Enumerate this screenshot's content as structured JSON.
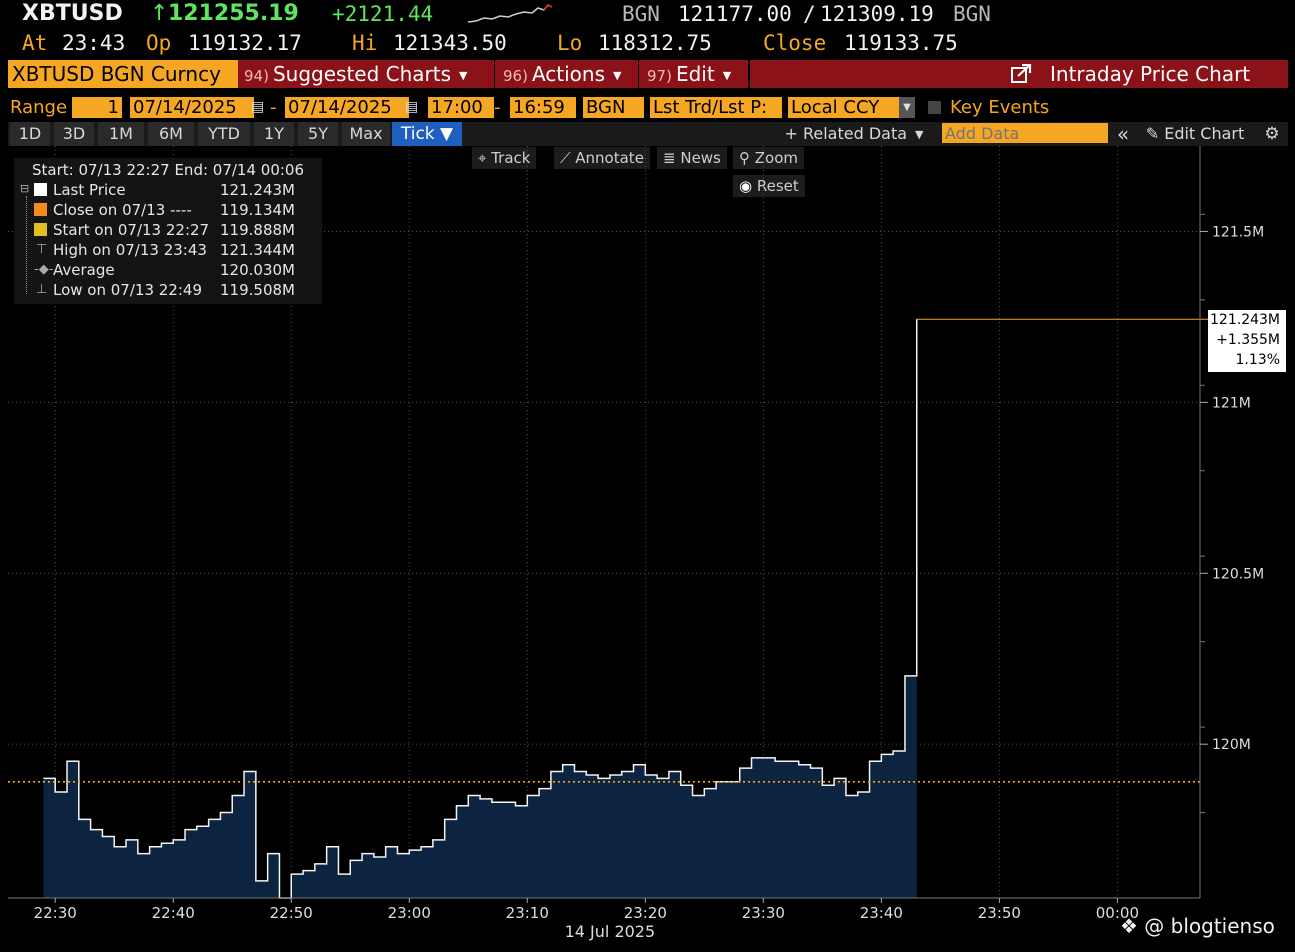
{
  "quote": {
    "ticker": "XBTUSD",
    "arrow": "↑",
    "last": "121255.19",
    "change": "+2121.44",
    "bid_source": "BGN",
    "bid": "121177.00",
    "separator": "/",
    "ask": "121309.19",
    "ask_source": "BGN"
  },
  "stats": {
    "at_label": "At",
    "at_value": "23:43",
    "op_label": "Op",
    "op_value": "119132.17",
    "hi_label": "Hi",
    "hi_value": "121343.50",
    "lo_label": "Lo",
    "lo_value": "118312.75",
    "close_label": "Close",
    "close_value": "119133.75"
  },
  "function_bar": {
    "security": "XBTUSD BGN Curncy",
    "menus": [
      {
        "num": "94)",
        "label": "Suggested Charts"
      },
      {
        "num": "96)",
        "label": "Actions"
      },
      {
        "num": "97)",
        "label": "Edit"
      }
    ],
    "title": "Intraday Price Chart",
    "title_icon": "external-link-icon"
  },
  "range_bar": {
    "label": "Range",
    "range_num": "1",
    "start_date": "07/14/2025",
    "dash": "-",
    "end_date": "07/14/2025",
    "start_time": "17:00",
    "end_time": "16:59",
    "source": "BGN",
    "field": "Lst Trd/Lst P:",
    "currency": "Local CCY",
    "key_events": "Key Events"
  },
  "period_tabs": [
    "1D",
    "3D",
    "1M",
    "6M",
    "YTD",
    "1Y",
    "5Y",
    "Max",
    "Tick ▼"
  ],
  "active_tab": 8,
  "toolbar": {
    "related_data": "+ Related Data",
    "add_data_placeholder": "Add Data",
    "collapse": "«",
    "edit_chart": "Edit Chart",
    "track": "Track",
    "annotate": "Annotate",
    "news": "News",
    "zoom": "Zoom",
    "reset": "Reset"
  },
  "legend": {
    "header": "Start: 07/13 22:27 End: 07/14 00:06",
    "rows": [
      {
        "name": "Last Price",
        "value": "121.243M",
        "color": "#ffffff"
      },
      {
        "name": "Close on 07/13 ----",
        "value": "119.134M",
        "color": "#f58a1f"
      },
      {
        "name": "Start on 07/13 22:27",
        "value": "119.888M",
        "color": "#e0c020"
      },
      {
        "name": "High on 07/13 23:43",
        "value": "121.344M",
        "color": ""
      },
      {
        "name": "Average",
        "value": "120.030M",
        "color": ""
      },
      {
        "name": "Low on 07/13 22:49",
        "value": "119.508M",
        "color": ""
      }
    ]
  },
  "price_flag": {
    "price": "121.243M",
    "change": "+1.355M",
    "pct": "1.13%"
  },
  "chart_data": {
    "type": "area",
    "title": "",
    "xlabel": "14 Jul 2025",
    "ylabel": "",
    "x_ticks": [
      "22:30",
      "22:40",
      "22:50",
      "23:00",
      "23:10",
      "23:20",
      "23:30",
      "23:40",
      "23:50",
      "00:00"
    ],
    "y_ticks": [
      "120M",
      "120.5M",
      "121M",
      "121.5M"
    ],
    "y_tick_values": [
      120.0,
      120.5,
      121.0,
      121.5
    ],
    "ylim": [
      119.55,
      121.75
    ],
    "close_line": 119.89,
    "last_price": 121.243,
    "grid": "dotted",
    "series": [
      {
        "name": "Last Price",
        "x": [
          "22:29",
          "22:30",
          "22:31",
          "22:32",
          "22:33",
          "22:34",
          "22:35",
          "22:36",
          "22:37",
          "22:38",
          "22:39",
          "22:40",
          "22:41",
          "22:42",
          "22:43",
          "22:44",
          "22:45",
          "22:46",
          "22:47",
          "22:48",
          "22:49",
          "22:50",
          "22:51",
          "22:52",
          "22:53",
          "22:54",
          "22:55",
          "22:56",
          "22:57",
          "22:58",
          "22:59",
          "23:00",
          "23:01",
          "23:02",
          "23:03",
          "23:04",
          "23:05",
          "23:06",
          "23:07",
          "23:08",
          "23:09",
          "23:10",
          "23:11",
          "23:12",
          "23:13",
          "23:14",
          "23:15",
          "23:16",
          "23:17",
          "23:18",
          "23:19",
          "23:20",
          "23:21",
          "23:22",
          "23:23",
          "23:24",
          "23:25",
          "23:26",
          "23:27",
          "23:28",
          "23:29",
          "23:30",
          "23:31",
          "23:32",
          "23:33",
          "23:34",
          "23:35",
          "23:36",
          "23:37",
          "23:38",
          "23:39",
          "23:40",
          "23:41",
          "23:42",
          "23:43"
        ],
        "values": [
          119.9,
          119.86,
          119.95,
          119.78,
          119.75,
          119.73,
          119.7,
          119.72,
          119.68,
          119.7,
          119.71,
          119.72,
          119.75,
          119.76,
          119.78,
          119.8,
          119.85,
          119.92,
          119.6,
          119.68,
          119.55,
          119.62,
          119.63,
          119.65,
          119.7,
          119.62,
          119.66,
          119.68,
          119.67,
          119.7,
          119.68,
          119.69,
          119.7,
          119.72,
          119.78,
          119.82,
          119.85,
          119.84,
          119.83,
          119.83,
          119.82,
          119.85,
          119.87,
          119.92,
          119.94,
          119.92,
          119.91,
          119.9,
          119.91,
          119.92,
          119.94,
          119.91,
          119.9,
          119.92,
          119.88,
          119.85,
          119.87,
          119.89,
          119.89,
          119.93,
          119.96,
          119.96,
          119.95,
          119.95,
          119.94,
          119.93,
          119.88,
          119.9,
          119.85,
          119.86,
          119.95,
          119.97,
          119.98,
          120.2,
          121.243
        ]
      }
    ]
  }
}
